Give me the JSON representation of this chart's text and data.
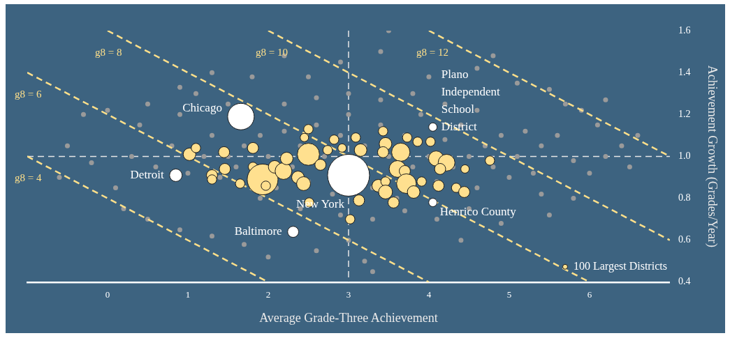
{
  "chart_data": {
    "type": "bubble",
    "xlabel": "Average Grade-Three Achievement",
    "ylabel": "Achievement Growth (Grades/Year)",
    "xlim": [
      -1,
      7
    ],
    "xticks": [
      0,
      1,
      2,
      3,
      4,
      5,
      6
    ],
    "ylim": [
      0.4,
      1.6
    ],
    "yticks": [
      0.4,
      0.6,
      0.8,
      {
        "value": 1.0,
        "label": "1.0"
      },
      1.2,
      1.4,
      1.6
    ],
    "legend": "bottom right",
    "line_style": "dashed",
    "ref_lines": [
      {
        "axis": "x",
        "value": 3,
        "color": "#e6e6e6",
        "line_style": "dashed"
      },
      {
        "axis": "y",
        "value": 1.0,
        "color": "#e6e6e6",
        "line_style": "dashed"
      }
    ],
    "series": [
      {
        "type": "scatter",
        "marker": "circle",
        "color": "#9a9a9a",
        "x": [
          1.5,
          1.6,
          1.7,
          1.9,
          2.0,
          2.1,
          2.2,
          2.3,
          2.4,
          2.5,
          2.6,
          2.7,
          2.8,
          2.9,
          3.0,
          3.2,
          3.3,
          3.4,
          3.5,
          3.6,
          3.7,
          3.8,
          3.9,
          4.0,
          4.1,
          4.2,
          4.3,
          4.4,
          4.5,
          4.6,
          4.7,
          4.8,
          4.9,
          5.0,
          5.1,
          5.2,
          5.3,
          5.4,
          2.2,
          2.6,
          3.0,
          3.4,
          3.8,
          4.2,
          4.6,
          2.4,
          2.9,
          3.3,
          3.7,
          4.1,
          4.5,
          1.9,
          1.4,
          1.3,
          1.2,
          1.0,
          0.8,
          0.6,
          0.3,
          0.1,
          -0.2,
          -0.5,
          -0.6,
          0.5,
          0.9,
          1.3,
          1.7,
          2.0,
          2.6,
          3.2,
          3.3,
          3.0,
          4.4,
          4.9,
          5.5,
          5.8,
          6.0,
          6.2,
          6.4,
          6.5,
          6.1,
          5.7,
          5.5,
          5.9,
          6.2,
          5.1,
          4.8,
          4.6,
          3.5,
          3.4,
          2.9,
          2.2,
          1.8,
          1.3,
          0.9,
          0.5,
          0.0,
          0.4,
          0.9,
          1.1,
          1.5,
          5.6,
          5.8,
          5.4,
          6.6,
          -0.3,
          0.2,
          4.0,
          2.5
        ],
        "values": [
          1.0,
          0.95,
          1.05,
          1.1,
          1.0,
          0.85,
          1.12,
          0.95,
          1.05,
          0.88,
          1.15,
          1.0,
          0.82,
          1.1,
          1.2,
          1.05,
          0.85,
          1.15,
          1.0,
          0.8,
          1.1,
          0.95,
          1.2,
          1.0,
          0.88,
          1.08,
          0.95,
          1.15,
          1.0,
          0.85,
          1.05,
          0.95,
          1.1,
          0.9,
          1.0,
          1.12,
          0.92,
          1.05,
          1.25,
          1.28,
          1.3,
          1.27,
          1.3,
          1.25,
          1.22,
          0.75,
          0.72,
          0.7,
          0.74,
          0.7,
          0.75,
          0.8,
          0.9,
          1.1,
          1.0,
          0.92,
          1.05,
          0.95,
          1.0,
          0.85,
          0.97,
          1.05,
          0.9,
          0.7,
          0.65,
          0.62,
          0.58,
          0.52,
          0.55,
          0.5,
          0.45,
          0.6,
          0.6,
          0.68,
          0.72,
          0.8,
          0.92,
          1.0,
          1.05,
          0.95,
          1.15,
          1.25,
          1.32,
          1.22,
          1.27,
          1.35,
          1.48,
          1.42,
          1.6,
          1.5,
          1.45,
          1.48,
          1.38,
          1.4,
          1.33,
          1.25,
          1.22,
          1.15,
          1.2,
          1.3,
          1.25,
          1.1,
          0.98,
          0.82,
          1.1,
          1.2,
          0.75,
          1.38,
          1.38
        ]
      },
      {
        "type": "line",
        "name": "g8 = 4",
        "color": "#ffe08a",
        "x": [
          -1,
          2
        ],
        "values": [
          1.0,
          0.4
        ]
      },
      {
        "type": "line",
        "name": "g8 = 6",
        "color": "#ffe08a",
        "x": [
          -1,
          4
        ],
        "values": [
          1.4,
          0.4
        ]
      },
      {
        "type": "line",
        "name": "g8 = 8",
        "color": "#ffe08a",
        "x": [
          0,
          6
        ],
        "values": [
          1.6,
          0.4
        ]
      },
      {
        "type": "line",
        "name": "g8 = 10",
        "color": "#ffe08a",
        "x": [
          2,
          7
        ],
        "values": [
          1.6,
          0.6
        ]
      },
      {
        "type": "line",
        "name": "g8 = 12",
        "color": "#ffe08a",
        "x": [
          4,
          7
        ],
        "values": [
          1.6,
          1.0
        ]
      },
      {
        "name": "100 Largest Districts",
        "color": "#ffe08f",
        "x": [
          1.02,
          1.1,
          1.45,
          1.3,
          1.3,
          1.46,
          1.65,
          1.81,
          1.81,
          1.93,
          1.97,
          2.08,
          2.19,
          2.23,
          2.37,
          2.44,
          2.5,
          2.45,
          2.5,
          2.51,
          2.82,
          2.74,
          2.92,
          2.65,
          3.09,
          3.15,
          3.43,
          3.46,
          3.43,
          3.65,
          3.61,
          3.7,
          3.73,
          3.86,
          4.02,
          4.09,
          4.22,
          4.14,
          4.45,
          3.37,
          3.46,
          3.46,
          3.72,
          3.81,
          3.91,
          4.12,
          4.34,
          4.44,
          3.13,
          3.56,
          3.02,
          4.76
        ],
        "values": [
          1.01,
          1.04,
          1.02,
          0.91,
          0.89,
          0.94,
          0.87,
          1.04,
          0.95,
          0.89,
          0.86,
          0.95,
          0.93,
          0.99,
          0.9,
          0.87,
          1.13,
          1.09,
          1.01,
          0.78,
          1.08,
          1.03,
          1.04,
          0.96,
          1.09,
          1.03,
          1.12,
          1.06,
          1.02,
          1.02,
          0.94,
          0.93,
          1.09,
          1.07,
          1.07,
          0.99,
          0.97,
          0.94,
          0.94,
          0.86,
          0.88,
          0.83,
          0.87,
          0.83,
          0.88,
          0.86,
          0.85,
          0.83,
          0.79,
          0.78,
          0.7,
          0.98
        ],
        "sizes": [
          0.09,
          0.05,
          0.07,
          0.07,
          0.05,
          0.07,
          0.05,
          0.07,
          0.05,
          0.54,
          0.05,
          0.09,
          0.16,
          0.09,
          0.09,
          0.11,
          0.05,
          0.04,
          0.28,
          0.05,
          0.05,
          0.05,
          0.04,
          0.07,
          0.05,
          0.09,
          0.05,
          0.09,
          0.07,
          0.19,
          0.16,
          0.07,
          0.05,
          0.05,
          0.05,
          0.13,
          0.16,
          0.07,
          0.04,
          0.09,
          0.05,
          0.11,
          0.22,
          0.09,
          0.05,
          0.07,
          0.05,
          0.07,
          0.07,
          0.07,
          0.05,
          0.05
        ]
      },
      {
        "color": "#ffffff",
        "x": [
          1.66,
          0.85,
          3.0,
          2.31,
          4.05,
          4.05
        ],
        "values": [
          1.19,
          0.91,
          0.91,
          0.64,
          1.14,
          0.78
        ],
        "sizes": [
          0.4,
          0.09,
          1,
          0.07,
          0.04,
          0.04
        ]
      }
    ],
    "annotations": [
      {
        "text": "Chicago",
        "x": 1.66,
        "y": 1.19
      },
      {
        "text": "Detroit",
        "x": 0.85,
        "y": 0.91
      },
      {
        "text": "New York",
        "x": 3.0,
        "y": 0.91
      },
      {
        "text": "Baltimore",
        "x": 2.31,
        "y": 0.64
      },
      {
        "text": "Plano Independent School District",
        "x": 4.05,
        "y": 1.14
      },
      {
        "text": "Henrico County",
        "x": 4.05,
        "y": 0.78
      }
    ]
  }
}
